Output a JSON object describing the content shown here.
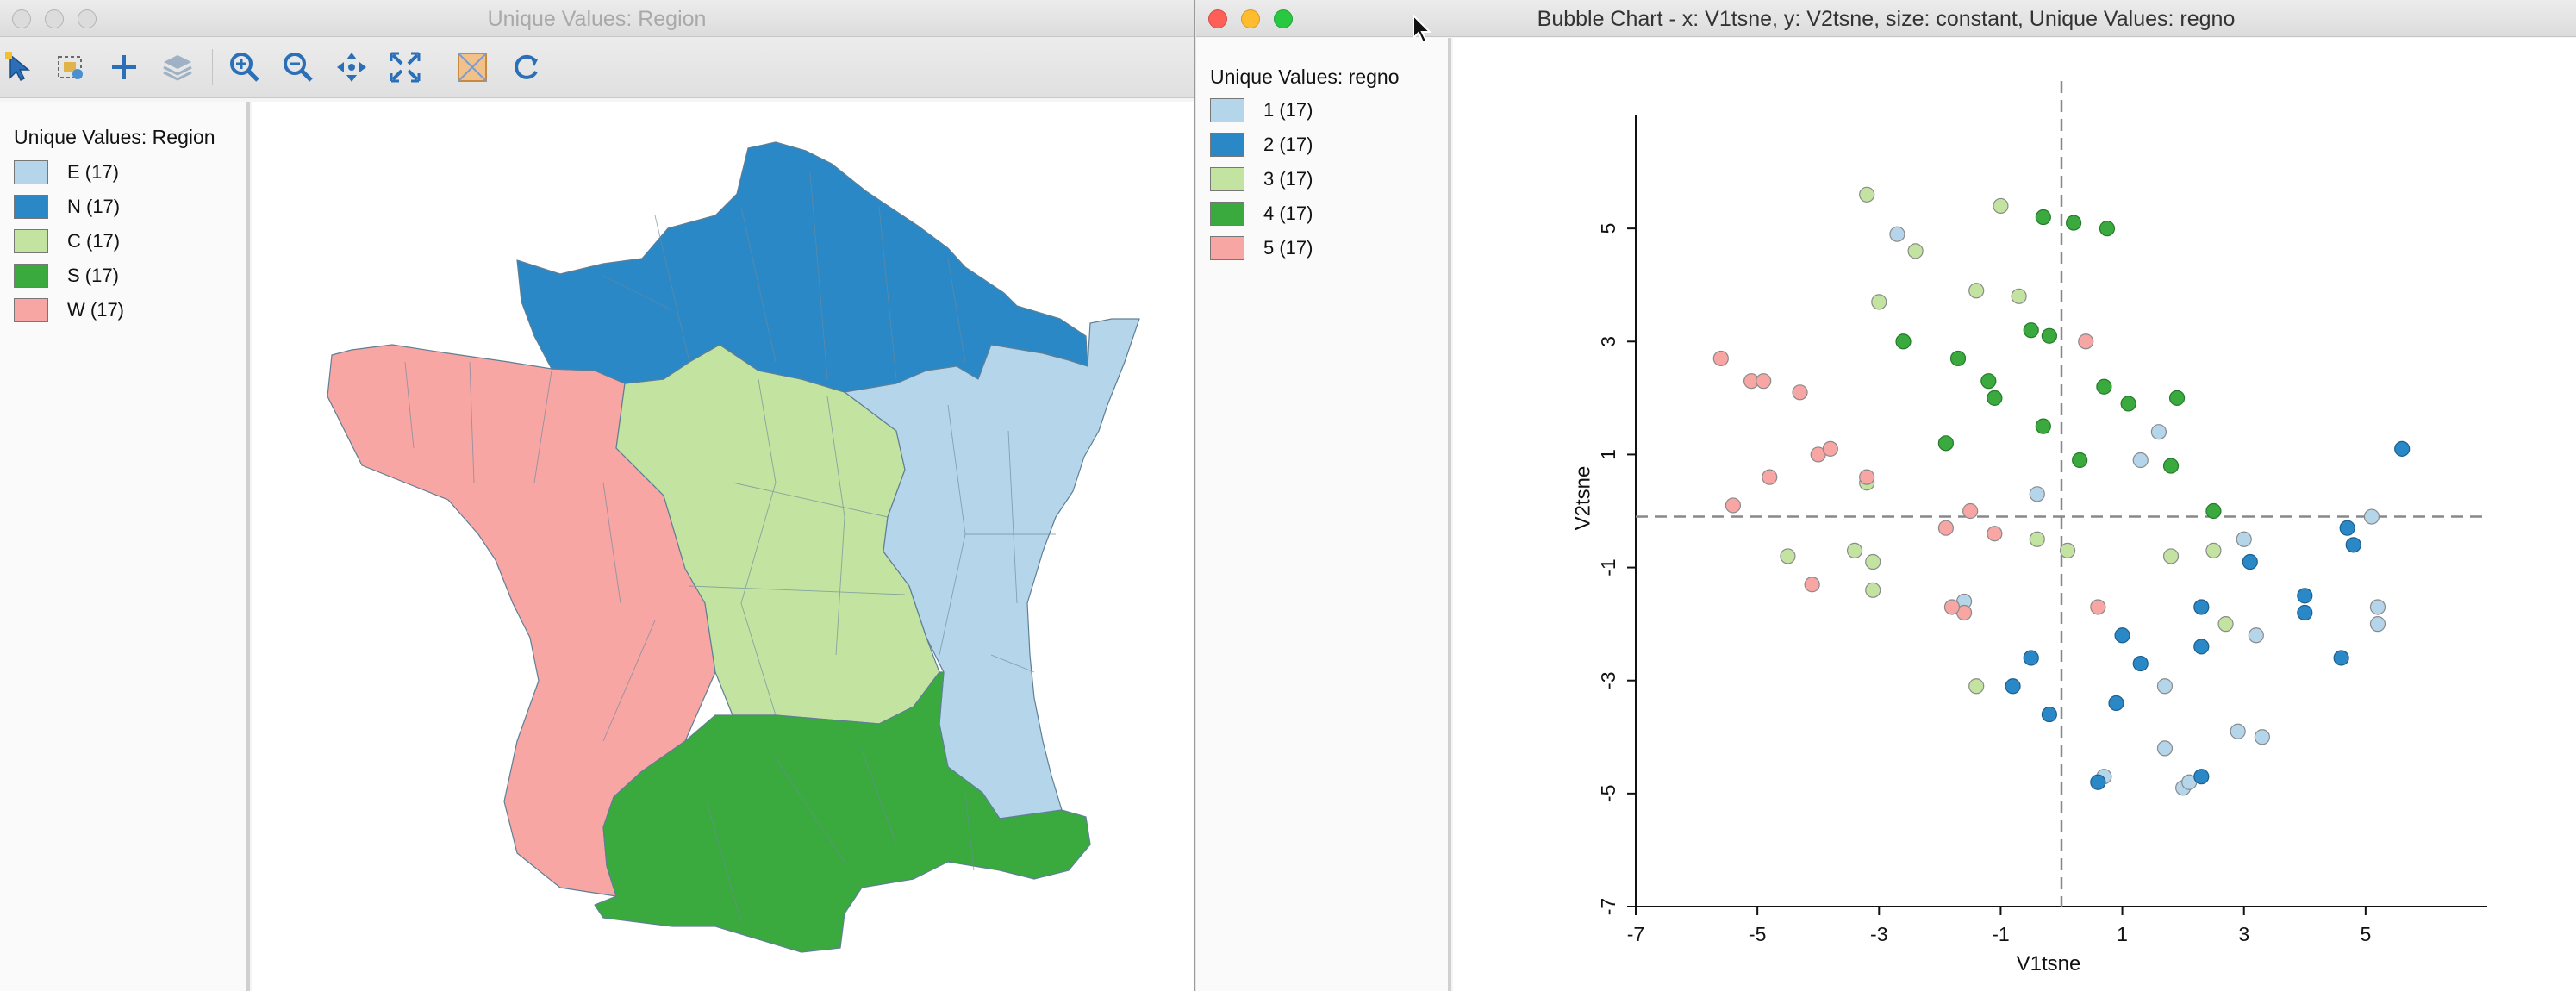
{
  "left_window": {
    "title": "Unique Values: Region",
    "toolbar": {
      "icons": [
        "select-arrow-icon",
        "selection-shape-icon",
        "crosshair-add-icon",
        "layers-icon",
        "zoom-in-icon",
        "zoom-out-icon",
        "pan-icon",
        "full-extent-icon",
        "map-overlay-icon",
        "refresh-icon"
      ]
    },
    "legend": {
      "title": "Unique Values: Region",
      "items": [
        {
          "label": "E (17)",
          "color": "#b4d5ea"
        },
        {
          "label": "N (17)",
          "color": "#2b88c6"
        },
        {
          "label": "C (17)",
          "color": "#c3e3a1"
        },
        {
          "label": "S (17)",
          "color": "#3aaa3f"
        },
        {
          "label": "W (17)",
          "color": "#f7a6a3"
        }
      ]
    }
  },
  "right_window": {
    "title": "Bubble Chart - x: V1tsne, y: V2tsne, size: constant, Unique Values: regno",
    "legend": {
      "title": "Unique Values: regno",
      "items": [
        {
          "label": "1 (17)",
          "color": "#b4d5ea"
        },
        {
          "label": "2 (17)",
          "color": "#2b88c6"
        },
        {
          "label": "3 (17)",
          "color": "#c3e3a1"
        },
        {
          "label": "4 (17)",
          "color": "#3aaa3f"
        },
        {
          "label": "5 (17)",
          "color": "#f7a6a3"
        }
      ]
    }
  },
  "chart_data": {
    "type": "scatter",
    "xlabel": "V1tsne",
    "ylabel": "V2tsne",
    "xlim": [
      -7,
      7
    ],
    "ylim": [
      -7,
      7
    ],
    "xticks": [
      -7,
      -5,
      -3,
      -1,
      1,
      3,
      5
    ],
    "yticks": [
      -7,
      -5,
      -3,
      -1,
      1,
      3,
      5
    ],
    "reference_lines": {
      "x": 0,
      "y": -0.1
    },
    "series": [
      {
        "name": "1",
        "color": "#b4d5ea",
        "points": [
          [
            -2.7,
            4.9
          ],
          [
            1.6,
            1.4
          ],
          [
            1.3,
            0.9
          ],
          [
            -0.4,
            0.3
          ],
          [
            5.1,
            -0.1
          ],
          [
            3.0,
            -0.5
          ],
          [
            5.2,
            -1.7
          ],
          [
            5.2,
            -2.0
          ],
          [
            3.2,
            -2.2
          ],
          [
            -1.6,
            -1.6
          ],
          [
            1.7,
            -3.1
          ],
          [
            2.9,
            -3.9
          ],
          [
            3.3,
            -4.0
          ],
          [
            1.7,
            -4.2
          ],
          [
            0.7,
            -4.7
          ],
          [
            2.0,
            -4.9
          ],
          [
            2.1,
            -4.8
          ]
        ]
      },
      {
        "name": "2",
        "color": "#2b88c6",
        "points": [
          [
            5.6,
            1.1
          ],
          [
            4.7,
            -0.3
          ],
          [
            4.8,
            -0.6
          ],
          [
            3.1,
            -0.9
          ],
          [
            4.0,
            -1.5
          ],
          [
            4.0,
            -1.8
          ],
          [
            2.3,
            -1.7
          ],
          [
            1.0,
            -2.2
          ],
          [
            2.3,
            -2.4
          ],
          [
            4.6,
            -2.6
          ],
          [
            -0.5,
            -2.6
          ],
          [
            1.3,
            -2.7
          ],
          [
            -0.8,
            -3.1
          ],
          [
            0.9,
            -3.4
          ],
          [
            -0.2,
            -3.6
          ],
          [
            2.3,
            -4.7
          ],
          [
            0.6,
            -4.8
          ]
        ]
      },
      {
        "name": "3",
        "color": "#c3e3a1",
        "points": [
          [
            -3.2,
            5.6
          ],
          [
            -1.0,
            5.4
          ],
          [
            -2.4,
            4.6
          ],
          [
            -3.0,
            3.7
          ],
          [
            -1.4,
            3.9
          ],
          [
            -0.7,
            3.8
          ],
          [
            -3.2,
            0.5
          ],
          [
            -0.4,
            -0.5
          ],
          [
            0.1,
            -0.7
          ],
          [
            -4.5,
            -0.8
          ],
          [
            -3.4,
            -0.7
          ],
          [
            -3.1,
            -0.9
          ],
          [
            -3.1,
            -1.4
          ],
          [
            1.8,
            -0.8
          ],
          [
            2.5,
            -0.7
          ],
          [
            2.7,
            -2.0
          ],
          [
            -1.4,
            -3.1
          ]
        ]
      },
      {
        "name": "4",
        "color": "#3aaa3f",
        "points": [
          [
            -0.3,
            5.2
          ],
          [
            0.2,
            5.1
          ],
          [
            0.75,
            5.0
          ],
          [
            -0.5,
            3.2
          ],
          [
            -0.2,
            3.1
          ],
          [
            -2.6,
            3.0
          ],
          [
            -1.7,
            2.7
          ],
          [
            -1.2,
            2.3
          ],
          [
            -1.1,
            2.0
          ],
          [
            0.7,
            2.2
          ],
          [
            1.1,
            1.9
          ],
          [
            1.9,
            2.0
          ],
          [
            -0.3,
            1.5
          ],
          [
            -1.9,
            1.2
          ],
          [
            0.3,
            0.9
          ],
          [
            1.8,
            0.8
          ],
          [
            2.5,
            0.0
          ]
        ]
      },
      {
        "name": "5",
        "color": "#f7a6a3",
        "points": [
          [
            -5.6,
            2.7
          ],
          [
            -5.1,
            2.3
          ],
          [
            -4.9,
            2.3
          ],
          [
            -4.3,
            2.1
          ],
          [
            0.4,
            3.0
          ],
          [
            -4.0,
            1.0
          ],
          [
            -3.8,
            1.1
          ],
          [
            -4.8,
            0.6
          ],
          [
            -3.2,
            0.6
          ],
          [
            -5.4,
            0.1
          ],
          [
            -1.5,
            0.0
          ],
          [
            -1.9,
            -0.3
          ],
          [
            -1.1,
            -0.4
          ],
          [
            -4.1,
            -1.3
          ],
          [
            0.6,
            -1.7
          ],
          [
            -1.6,
            -1.8
          ],
          [
            -1.8,
            -1.7
          ]
        ]
      }
    ]
  }
}
